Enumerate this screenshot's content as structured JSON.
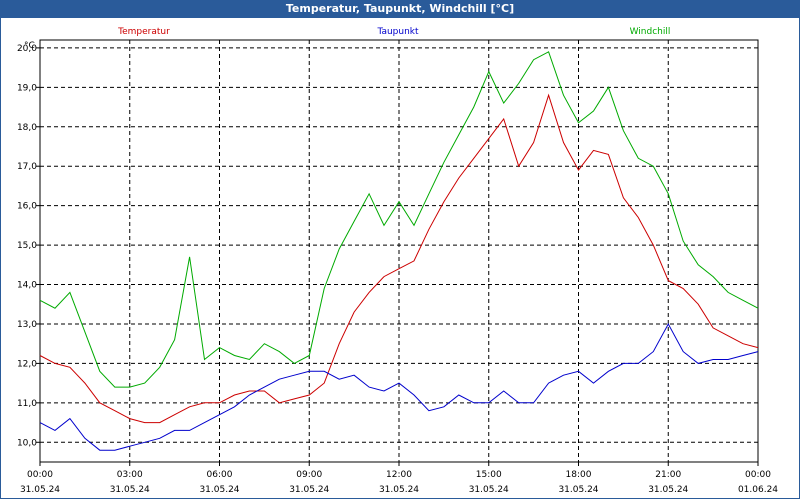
{
  "window": {
    "title": "Temperatur, Taupunkt, Windchill [°C]"
  },
  "chart_data": {
    "type": "line",
    "title": "Temperatur, Taupunkt, Windchill [°C]",
    "ylabel": "°C",
    "ylim": [
      9.5,
      20.2
    ],
    "y_ticks": [
      "10,0",
      "11,0",
      "12,0",
      "13,0",
      "14,0",
      "15,0",
      "16,0",
      "17,0",
      "18,0",
      "19,0",
      "20,0"
    ],
    "x_ticks": [
      {
        "time": "00:00",
        "date": "31.05.24"
      },
      {
        "time": "03:00",
        "date": "31.05.24"
      },
      {
        "time": "06:00",
        "date": "31.05.24"
      },
      {
        "time": "09:00",
        "date": "31.05.24"
      },
      {
        "time": "12:00",
        "date": "31.05.24"
      },
      {
        "time": "15:00",
        "date": "31.05.24"
      },
      {
        "time": "18:00",
        "date": "31.05.24"
      },
      {
        "time": "21:00",
        "date": "31.05.24"
      },
      {
        "time": "00:00",
        "date": "01.06.24"
      }
    ],
    "grid": true,
    "legend_position": "top",
    "x_hours": [
      0,
      0.5,
      1,
      1.5,
      2,
      2.5,
      3,
      3.5,
      4,
      4.5,
      5,
      5.5,
      6,
      6.5,
      7,
      7.5,
      8,
      8.5,
      9,
      9.5,
      10,
      10.5,
      11,
      11.5,
      12,
      12.5,
      13,
      13.5,
      14,
      14.5,
      15,
      15.5,
      16,
      16.5,
      17,
      17.5,
      18,
      18.5,
      19,
      19.5,
      20,
      20.5,
      21,
      21.5,
      22,
      22.5,
      23,
      23.5,
      24
    ],
    "series": [
      {
        "name": "Temperatur",
        "color": "#cc0000",
        "values": [
          12.2,
          12.0,
          11.9,
          11.5,
          11.0,
          10.8,
          10.6,
          10.5,
          10.5,
          10.7,
          10.9,
          11.0,
          11.0,
          11.2,
          11.3,
          11.3,
          11.0,
          11.1,
          11.2,
          11.5,
          12.5,
          13.3,
          13.8,
          14.2,
          14.4,
          14.6,
          15.4,
          16.1,
          16.7,
          17.2,
          17.7,
          18.2,
          17.0,
          17.6,
          18.8,
          17.6,
          16.9,
          17.4,
          17.3,
          16.2,
          15.7,
          15.0,
          14.1,
          13.9,
          13.5,
          12.9,
          12.7,
          12.5,
          12.4
        ]
      },
      {
        "name": "Taupunkt",
        "color": "#0000cc",
        "values": [
          10.5,
          10.3,
          10.6,
          10.1,
          9.8,
          9.8,
          9.9,
          10.0,
          10.1,
          10.3,
          10.3,
          10.5,
          10.7,
          10.9,
          11.2,
          11.4,
          11.6,
          11.7,
          11.8,
          11.8,
          11.6,
          11.7,
          11.4,
          11.3,
          11.5,
          11.2,
          10.8,
          10.9,
          11.2,
          11.0,
          11.0,
          11.3,
          11.0,
          11.0,
          11.5,
          11.7,
          11.8,
          11.5,
          11.8,
          12.0,
          12.0,
          12.3,
          13.0,
          12.3,
          12.0,
          12.1,
          12.1,
          12.2,
          12.3
        ]
      },
      {
        "name": "Windchill",
        "color": "#00aa00",
        "values": [
          13.6,
          13.4,
          13.8,
          12.8,
          11.8,
          11.4,
          11.4,
          11.5,
          11.9,
          12.6,
          14.7,
          12.1,
          12.4,
          12.2,
          12.1,
          12.5,
          12.3,
          12.0,
          12.2,
          13.9,
          14.9,
          15.6,
          16.3,
          15.5,
          16.1,
          15.5,
          16.3,
          17.1,
          17.8,
          18.5,
          19.4,
          18.6,
          19.1,
          19.7,
          19.9,
          18.8,
          18.1,
          18.4,
          19.0,
          17.9,
          17.2,
          17.0,
          16.3,
          15.1,
          14.5,
          14.2,
          13.8,
          13.6,
          13.4
        ]
      }
    ]
  }
}
